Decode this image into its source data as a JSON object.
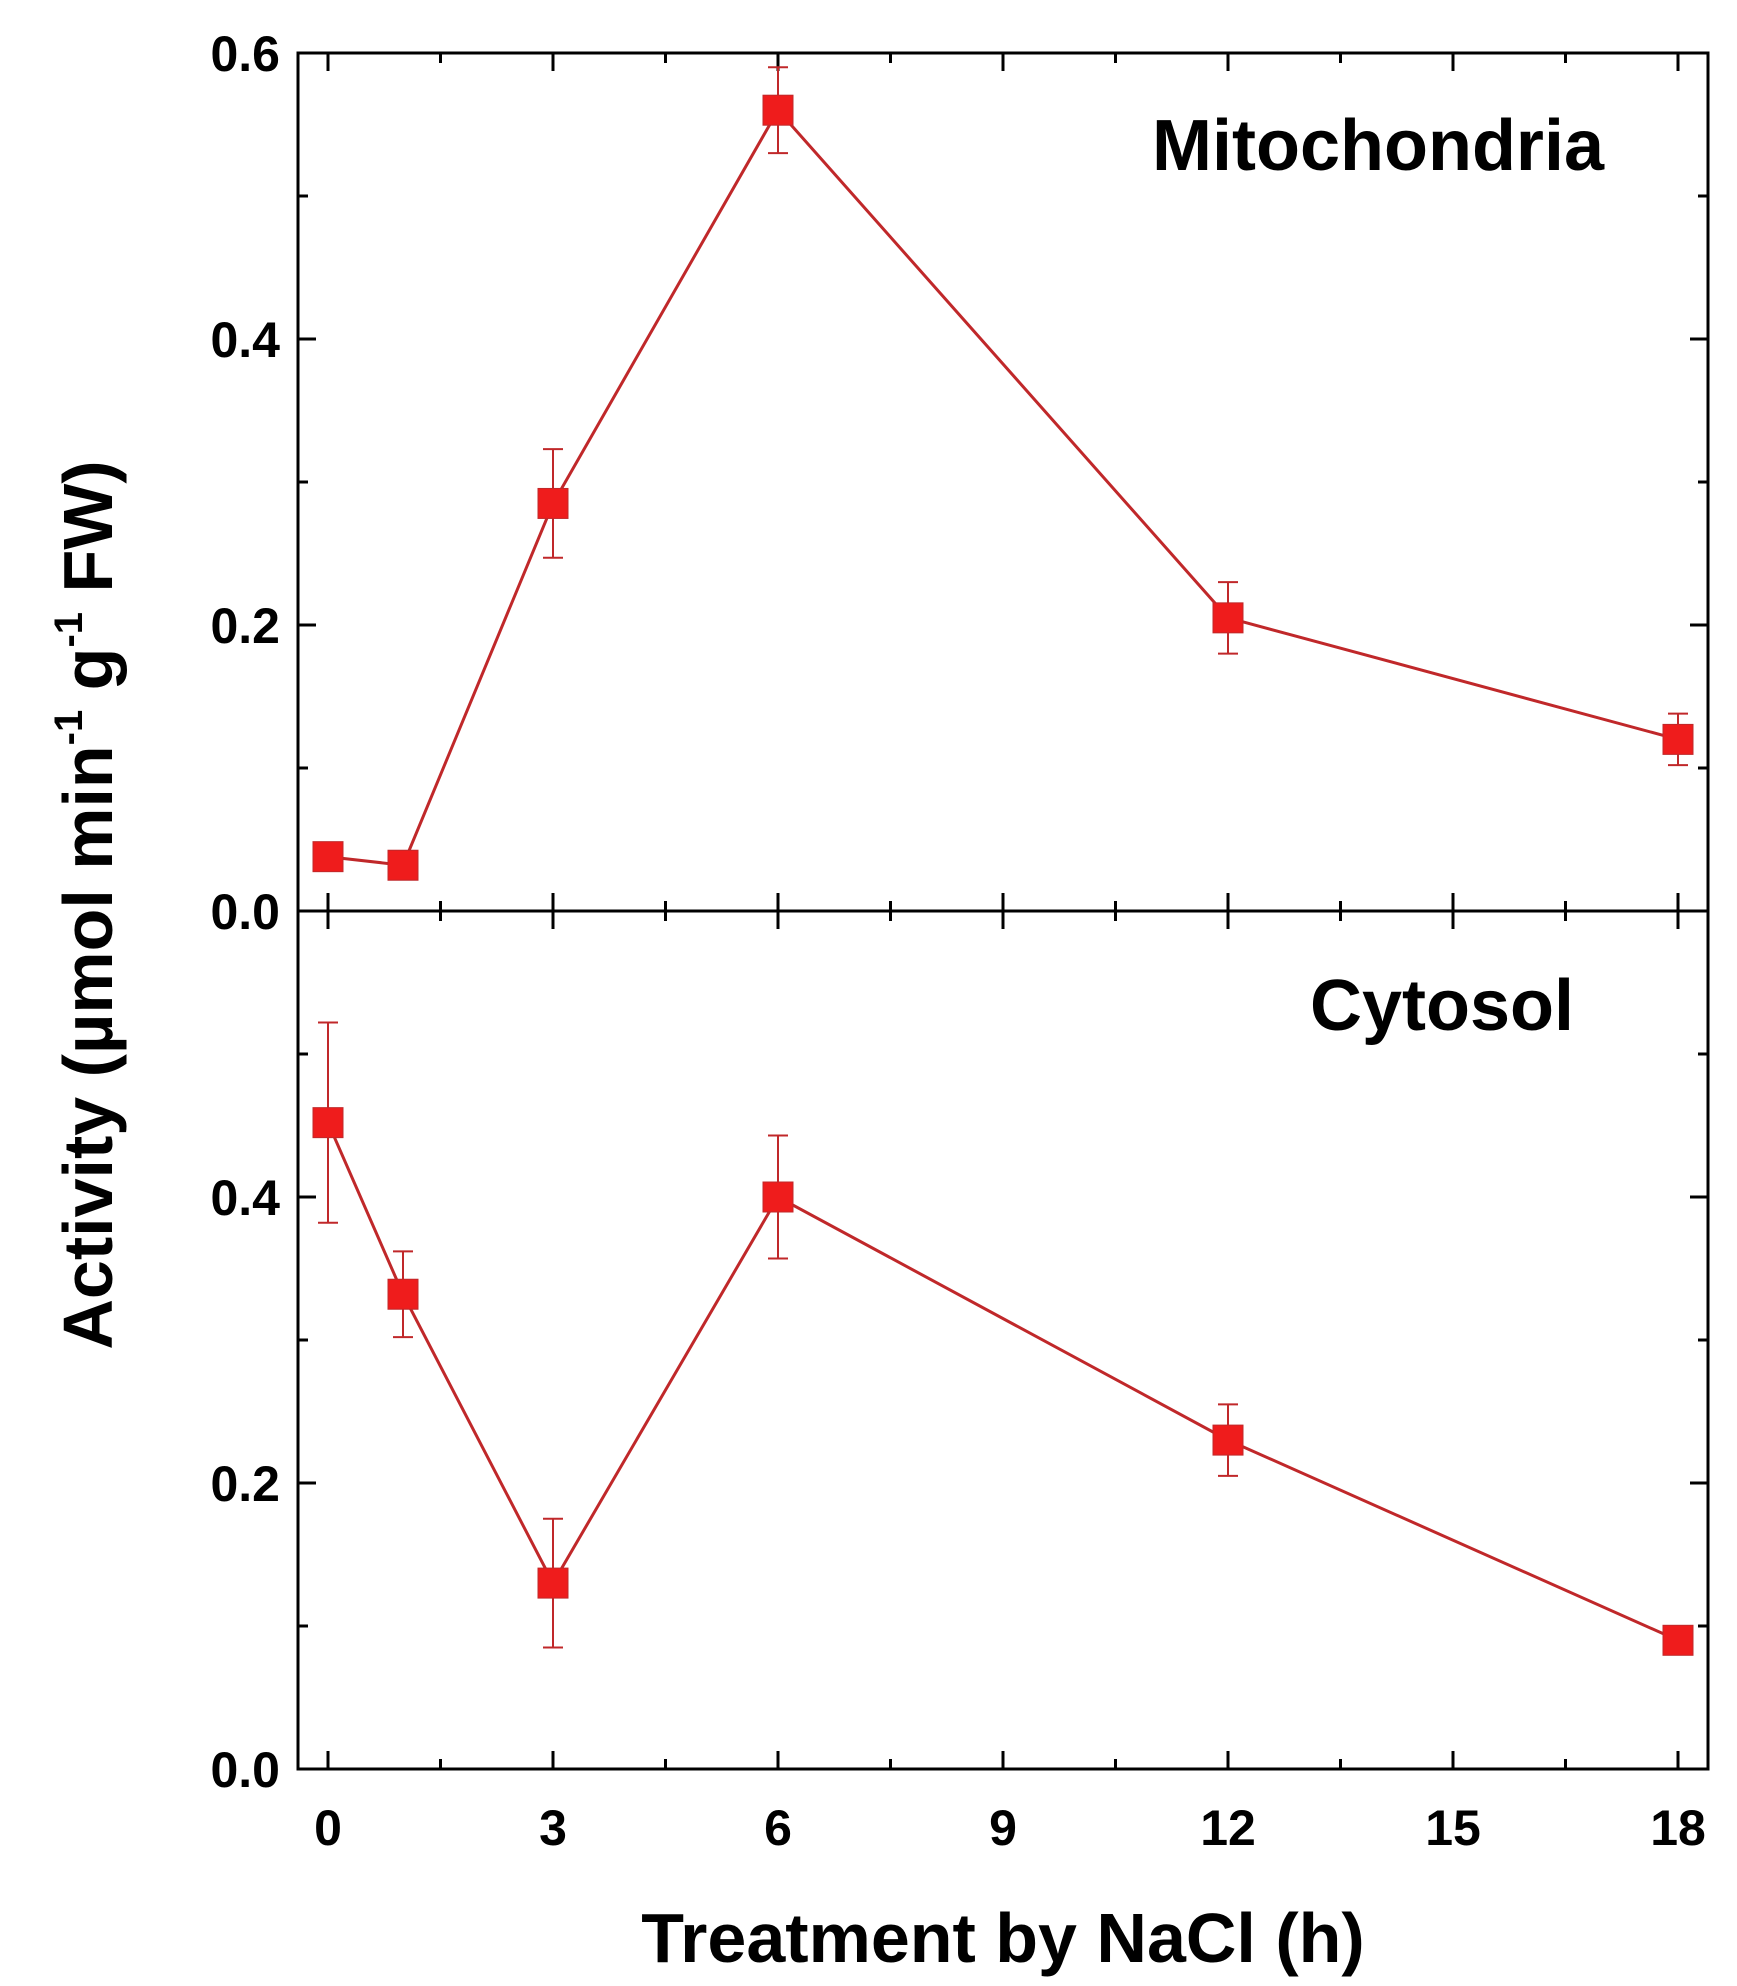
{
  "chart_data": {
    "type": "line",
    "xlabel": "Treatment by NaCl (h)",
    "ylabel": {
      "prefix": "Activity (µmol min",
      "sup1": "-1",
      "middle": " g",
      "sup2": "-1",
      "suffix": " FW)"
    },
    "xlim": [
      -0.4,
      18.4
    ],
    "xticks": [
      0,
      3,
      6,
      9,
      12,
      15,
      18
    ],
    "x_minor_ticks": [
      1.5,
      4.5,
      7.5,
      10.5,
      13.5,
      16.5
    ],
    "colors": {
      "series": "#c0282a",
      "marker": "#ef1c1c",
      "axes": "#000000"
    },
    "panels": [
      {
        "label": "Mitochondria",
        "ylim": [
          0.0,
          0.6
        ],
        "yticks": [
          "0.0",
          "0.2",
          "0.4",
          "0.6"
        ],
        "y_minor_ticks": [
          0.1,
          0.3,
          0.5
        ],
        "series": [
          {
            "name": "Mitochondria",
            "x": [
              0,
              1,
              3,
              6,
              12,
              18
            ],
            "y": [
              0.038,
              0.032,
              0.285,
              0.56,
              0.205,
              0.12
            ],
            "err": [
              0.008,
              0.006,
              0.038,
              0.03,
              0.025,
              0.018
            ]
          }
        ]
      },
      {
        "label": "Cytosol",
        "ylim": [
          0.0,
          0.6
        ],
        "yticks": [
          "0.0",
          "0.2",
          "0.4"
        ],
        "y_minor_ticks": [
          0.1,
          0.3,
          0.5
        ],
        "series": [
          {
            "name": "Cytosol",
            "x": [
              0,
              1,
              3,
              6,
              12,
              18
            ],
            "y": [
              0.452,
              0.332,
              0.13,
              0.4,
              0.23,
              0.09
            ],
            "err": [
              0.07,
              0.03,
              0.045,
              0.043,
              0.025,
              0.005
            ]
          }
        ]
      }
    ]
  }
}
